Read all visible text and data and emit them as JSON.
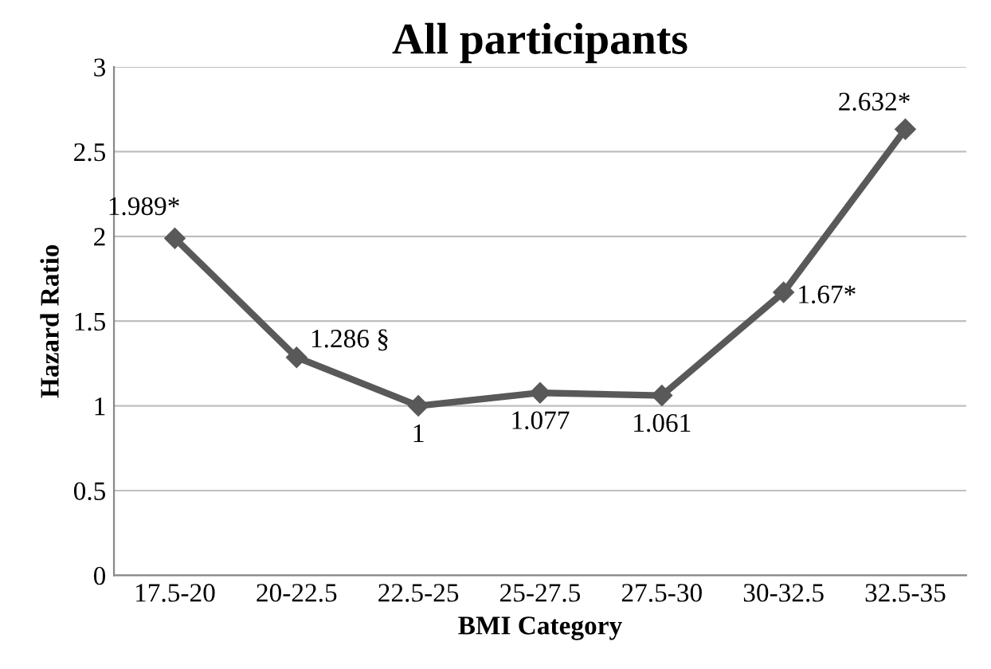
{
  "chart_data": {
    "type": "line",
    "title": "All participants",
    "xlabel": "BMI Category",
    "ylabel": "Hazard Ratio",
    "categories": [
      "17.5-20",
      "20-22.5",
      "22.5-25",
      "25-27.5",
      "27.5-30",
      "30-32.5",
      "32.5-35"
    ],
    "series": [
      {
        "color": "#595959",
        "values": [
          1.989,
          1.286,
          1,
          1.077,
          1.061,
          1.67,
          2.632
        ],
        "value_labels": [
          "1.989*",
          "1.286 §",
          "1",
          "1.077",
          "1.061",
          "1.67*",
          "2.632*"
        ]
      }
    ],
    "ylim": [
      0,
      3
    ],
    "yticks": [
      0,
      0.5,
      1,
      1.5,
      2,
      2.5,
      3
    ],
    "grid": "y",
    "marker": "diamond",
    "line_style": "solid"
  }
}
